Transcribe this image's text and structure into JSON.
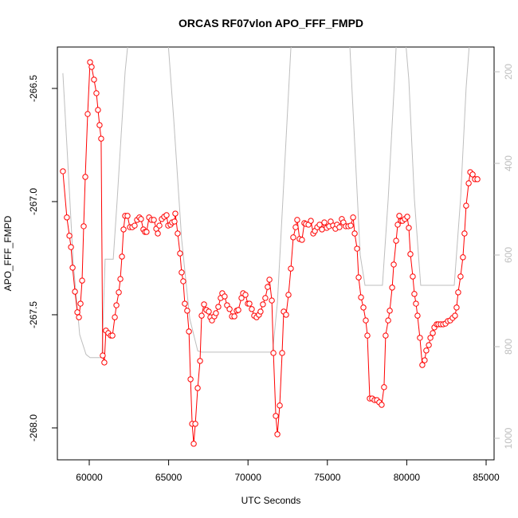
{
  "chart_data": {
    "type": "line",
    "title": "ORCAS RF07vlon APO_FFF_FMPD",
    "x_label": "UTC Seconds",
    "y_label": "APO_FFF_FMPD",
    "xlim": [
      57992,
      85502
    ],
    "ylim": [
      -268.141,
      -266.317
    ],
    "y2lim": [
      1047,
      146
    ],
    "xticks": [
      60000,
      65000,
      70000,
      75000,
      80000,
      85000
    ],
    "yticks": [
      {
        "value": -268,
        "label": "-268.0"
      },
      -267.5,
      {
        "value": -267,
        "label": "-267.0"
      },
      -266.5
    ],
    "y2ticks": [
      200,
      400,
      600,
      800,
      1000
    ],
    "series": [
      {
        "color": "#ff0000",
        "marker": "circle",
        "x": [
          58340,
          58590,
          58750,
          58850,
          58950,
          59100,
          59250,
          59350,
          59450,
          59550,
          59650,
          59750,
          59900,
          60050,
          60150,
          60300,
          60450,
          60550,
          60650,
          60750,
          60850,
          60950,
          61050,
          61200,
          61360,
          61460,
          61610,
          61710,
          61860,
          61960,
          62060,
          62160,
          62260,
          62410,
          62560,
          62710,
          62860,
          63010,
          63160,
          63260,
          63410,
          63510,
          63610,
          63770,
          63920,
          64070,
          64220,
          64320,
          64420,
          64570,
          64720,
          64870,
          64970,
          65120,
          65220,
          65370,
          65420,
          65570,
          65720,
          65820,
          65920,
          66020,
          66170,
          66280,
          66380,
          66480,
          66580,
          66680,
          66830,
          66980,
          67080,
          67230,
          67380,
          67530,
          67630,
          67730,
          67880,
          67980,
          68130,
          68280,
          68380,
          68530,
          68680,
          68840,
          68990,
          69140,
          69290,
          69390,
          69590,
          69690,
          69840,
          69990,
          70090,
          70240,
          70390,
          70540,
          70690,
          70790,
          70940,
          71090,
          71240,
          71350,
          71500,
          71600,
          71750,
          71850,
          72000,
          72150,
          72250,
          72400,
          72550,
          72700,
          72850,
          73000,
          73100,
          73250,
          73400,
          73550,
          73650,
          73810,
          73960,
          74110,
          74210,
          74360,
          74510,
          74660,
          74810,
          74960,
          75110,
          75210,
          75360,
          75510,
          75610,
          75760,
          75910,
          76010,
          76160,
          76320,
          76470,
          76620,
          76720,
          76870,
          76970,
          77120,
          77270,
          77420,
          77520,
          77670,
          77820,
          77970,
          78120,
          78270,
          78420,
          78570,
          78670,
          78830,
          78930,
          79080,
          79180,
          79330,
          79430,
          79530,
          79630,
          79730,
          79880,
          80030,
          80130,
          80230,
          80380,
          80480,
          80580,
          80680,
          80830,
          80980,
          81130,
          81230,
          81390,
          81490,
          81640,
          81740,
          81890,
          81990,
          82140,
          82290,
          82440,
          82590,
          82740,
          82890,
          83040,
          83140,
          83240,
          83390,
          83540,
          83640,
          83740,
          83900,
          84000,
          84150,
          84300,
          84450
        ],
        "values": [
          -266.866,
          -267.07,
          -267.151,
          -267.201,
          -267.292,
          -267.398,
          -267.489,
          -267.511,
          -267.451,
          -267.349,
          -267.109,
          -266.891,
          -266.613,
          -266.384,
          -266.405,
          -266.461,
          -266.521,
          -266.595,
          -266.662,
          -266.722,
          -267.68,
          -267.711,
          -267.57,
          -267.581,
          -267.592,
          -267.592,
          -267.511,
          -267.458,
          -267.401,
          -267.342,
          -267.243,
          -267.123,
          -267.063,
          -267.063,
          -267.113,
          -267.113,
          -267.106,
          -267.081,
          -267.07,
          -267.077,
          -267.123,
          -267.134,
          -267.134,
          -267.07,
          -267.081,
          -267.081,
          -267.12,
          -267.141,
          -267.106,
          -267.077,
          -267.067,
          -267.06,
          -267.106,
          -267.102,
          -267.092,
          -267.088,
          -267.053,
          -267.141,
          -267.229,
          -267.313,
          -267.352,
          -267.451,
          -267.482,
          -267.574,
          -267.785,
          -267.982,
          -268.07,
          -267.982,
          -267.824,
          -267.704,
          -267.504,
          -267.454,
          -267.479,
          -267.486,
          -267.511,
          -267.525,
          -267.507,
          -267.493,
          -267.465,
          -267.426,
          -267.405,
          -267.419,
          -267.458,
          -267.475,
          -267.507,
          -267.507,
          -267.482,
          -267.479,
          -267.426,
          -267.405,
          -267.412,
          -267.451,
          -267.451,
          -267.475,
          -267.504,
          -267.511,
          -267.5,
          -267.486,
          -267.454,
          -267.426,
          -267.377,
          -267.345,
          -267.437,
          -267.669,
          -267.947,
          -268.028,
          -267.901,
          -267.669,
          -267.486,
          -267.5,
          -267.412,
          -267.296,
          -267.158,
          -267.113,
          -267.081,
          -267.165,
          -267.169,
          -267.095,
          -267.099,
          -267.102,
          -267.085,
          -267.141,
          -267.13,
          -267.113,
          -267.102,
          -267.123,
          -267.092,
          -267.116,
          -267.109,
          -267.088,
          -267.106,
          -267.12,
          -267.102,
          -267.113,
          -267.077,
          -267.092,
          -267.109,
          -267.109,
          -267.106,
          -267.07,
          -267.141,
          -267.208,
          -267.335,
          -267.423,
          -267.468,
          -267.525,
          -267.592,
          -267.87,
          -267.87,
          -267.877,
          -267.877,
          -267.887,
          -267.898,
          -267.82,
          -267.592,
          -267.525,
          -267.482,
          -267.38,
          -267.278,
          -267.173,
          -267.102,
          -267.063,
          -267.085,
          -267.085,
          -267.077,
          -267.067,
          -267.116,
          -267.232,
          -267.331,
          -267.408,
          -267.451,
          -267.504,
          -267.602,
          -267.722,
          -267.701,
          -267.658,
          -267.634,
          -267.602,
          -267.581,
          -267.556,
          -267.542,
          -267.542,
          -267.542,
          -267.542,
          -267.539,
          -267.528,
          -267.525,
          -267.514,
          -267.504,
          -267.468,
          -267.401,
          -267.331,
          -267.246,
          -267.141,
          -267.018,
          -266.919,
          -266.87,
          -266.88,
          -266.901,
          -266.901
        ]
      },
      {
        "color": "#bebebe",
        "axis": "y2",
        "x": [
          58340,
          58640,
          58990,
          59400,
          59800,
          60050,
          60800,
          61000,
          61510,
          61760,
          62010,
          62260,
          62510,
          64920,
          65320,
          65820,
          66330,
          66830,
          67080,
          71550,
          71850,
          72200,
          72700,
          72950,
          76370,
          76720,
          77070,
          77370,
          78470,
          78830,
          79230,
          79380,
          79880,
          80130,
          80480,
          80880,
          82990,
          83390,
          83740,
          84000
        ],
        "values": [
          203,
          391,
          617,
          774,
          817,
          824,
          824,
          609,
          609,
          478,
          339,
          200,
          113,
          113,
          304,
          565,
          739,
          809,
          812,
          812,
          704,
          478,
          148,
          113,
          113,
          357,
          600,
          666,
          666,
          478,
          217,
          113,
          113,
          217,
          478,
          666,
          666,
          478,
          235,
          113
        ]
      }
    ]
  }
}
